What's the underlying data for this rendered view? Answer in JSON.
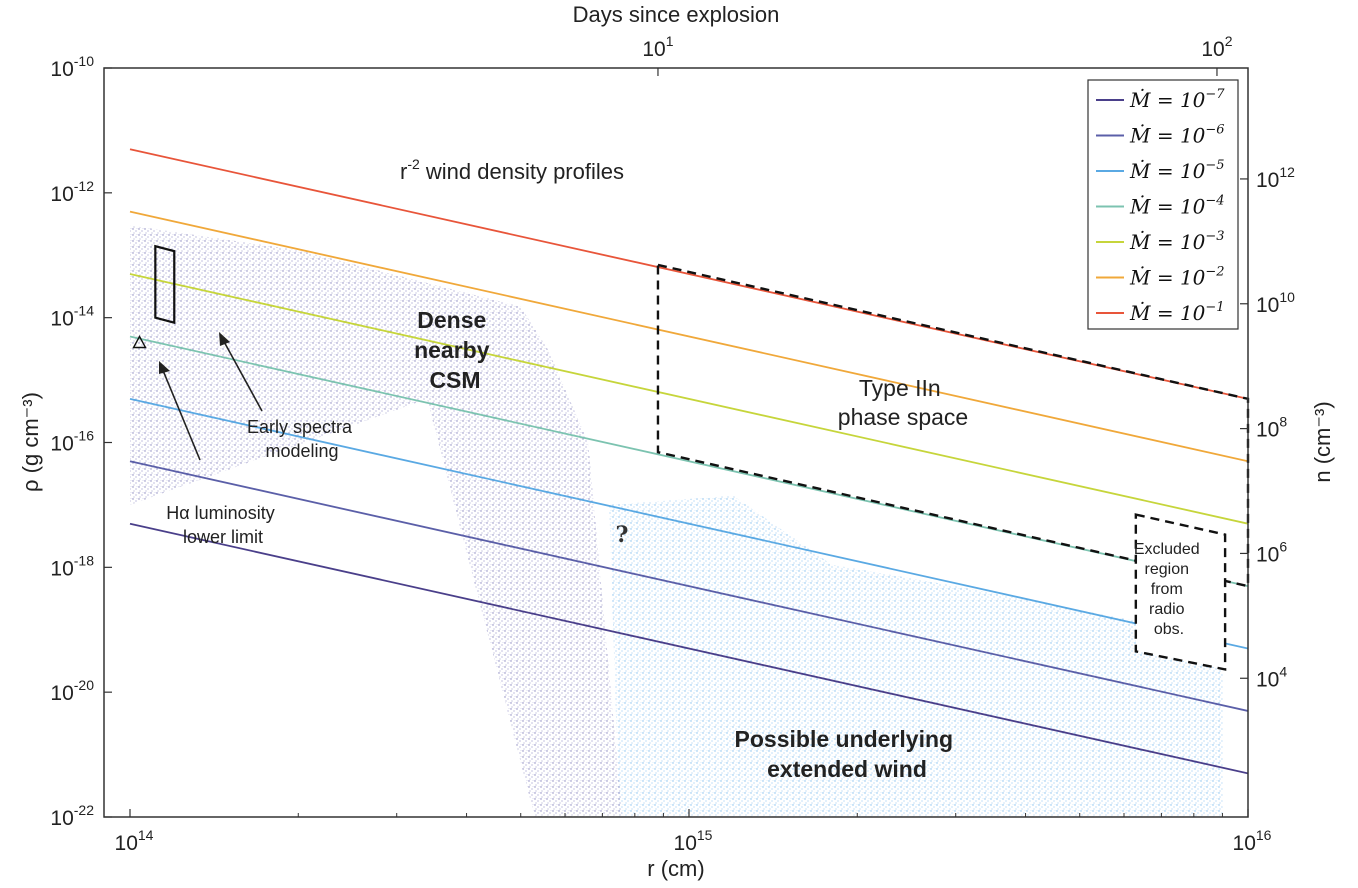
{
  "chart_data": {
    "type": "line",
    "title": "",
    "xlabel": "r (cm)",
    "ylabel": "ρ (g cm⁻³)",
    "top_xlabel": "Days since explosion",
    "right_ylabel": "n (cm⁻³)",
    "x_scale": "log",
    "y_scale": "log",
    "xlim": [
      100000000000000.0,
      1e+16
    ],
    "ylim": [
      1e-22,
      1e-10
    ],
    "x_ticks": [
      {
        "base": "10",
        "exp": "14"
      },
      {
        "base": "10",
        "exp": "15"
      },
      {
        "base": "10",
        "exp": "16"
      }
    ],
    "y_ticks": [
      {
        "value": 1e-10,
        "base": "10",
        "exp": "-10"
      },
      {
        "value": 1e-12,
        "base": "10",
        "exp": "-12"
      },
      {
        "value": 1e-14,
        "base": "10",
        "exp": "-14"
      },
      {
        "value": 1e-16,
        "base": "10",
        "exp": "-16"
      },
      {
        "value": 1e-18,
        "base": "10",
        "exp": "-18"
      },
      {
        "value": 1e-20,
        "base": "10",
        "exp": "-20"
      },
      {
        "value": 1e-22,
        "base": "10",
        "exp": "-22"
      }
    ],
    "top_ticks": [
      {
        "days": 10,
        "base": "10",
        "exp": "1"
      },
      {
        "days": 100,
        "base": "10",
        "exp": "2"
      }
    ],
    "right_ticks": [
      {
        "n": 1000000000000.0,
        "base": "10",
        "exp": "12"
      },
      {
        "n": 10000000000.0,
        "base": "10",
        "exp": "10"
      },
      {
        "n": 100000000.0,
        "base": "10",
        "exp": "8"
      },
      {
        "n": 1000000.0,
        "base": "10",
        "exp": "6"
      },
      {
        "n": 10000.0,
        "base": "10",
        "exp": "4"
      }
    ],
    "series": [
      {
        "name": "Ṁ = 10⁻⁷",
        "exp": "-7",
        "color": "#4a3f8a",
        "x": [
          100000000000000.0,
          1e+16
        ],
        "y": [
          5e-18,
          5e-22
        ]
      },
      {
        "name": "Ṁ = 10⁻⁶",
        "exp": "-6",
        "color": "#5b5fa8",
        "x": [
          100000000000000.0,
          1e+16
        ],
        "y": [
          5e-17,
          5e-21
        ]
      },
      {
        "name": "Ṁ = 10⁻⁵",
        "exp": "-5",
        "color": "#5aa9e3",
        "x": [
          100000000000000.0,
          1e+16
        ],
        "y": [
          5e-16,
          5e-20
        ]
      },
      {
        "name": "Ṁ = 10⁻⁴",
        "exp": "-4",
        "color": "#7cc3b0",
        "x": [
          100000000000000.0,
          1e+16
        ],
        "y": [
          5e-15,
          5e-19
        ]
      },
      {
        "name": "Ṁ = 10⁻³",
        "exp": "-3",
        "color": "#c6d53b",
        "x": [
          100000000000000.0,
          1e+16
        ],
        "y": [
          5e-14,
          5e-18
        ]
      },
      {
        "name": "Ṁ = 10⁻²",
        "exp": "-2",
        "color": "#f0a83a",
        "x": [
          100000000000000.0,
          1e+16
        ],
        "y": [
          5e-13,
          5e-17
        ]
      },
      {
        "name": "Ṁ = 10⁻¹",
        "exp": "-1",
        "color": "#e8553a",
        "x": [
          100000000000000.0,
          1e+16
        ],
        "y": [
          5e-12,
          5e-16
        ]
      }
    ],
    "regions": {
      "dense_csm": {
        "label": [
          "Dense",
          "nearby",
          "CSM"
        ],
        "color": "#6f6cb0"
      },
      "extended_wind": {
        "label": [
          "Possible underlying",
          "extended wind"
        ],
        "color": "#74b6ec"
      },
      "type_iin_box": {
        "label": [
          "Type IIn",
          "phase space"
        ],
        "x": [
          880000000000000.0,
          1e+16
        ],
        "y_top": [
          7e-14,
          5e-16
        ],
        "y_bottom": [
          7e-17,
          5e-19
        ]
      },
      "excluded_box": {
        "label": [
          "Excluded",
          "region",
          "from",
          "radio",
          "obs."
        ],
        "x": [
          6300000000000000.0,
          9100000000000000.0
        ],
        "y": [
          7e-18,
          4.5e-20
        ]
      },
      "early_spectra_box": {
        "x": [
          111000000000000.0,
          120000000000000.0
        ],
        "y": [
          1e-14,
          1.4e-13
        ]
      },
      "halpha_marker": {
        "x": 104000000000000.0,
        "y": 4e-15
      }
    },
    "annotations": {
      "wind_profiles": {
        "r": "r",
        "exp": "-2",
        "rest": " wind density profiles"
      },
      "early_spectra": [
        "Early spectra",
        "modeling"
      ],
      "halpha": [
        "Hα luminosity",
        "lower limit"
      ],
      "question": "?"
    },
    "legend_position": "top-right",
    "grid": false
  }
}
